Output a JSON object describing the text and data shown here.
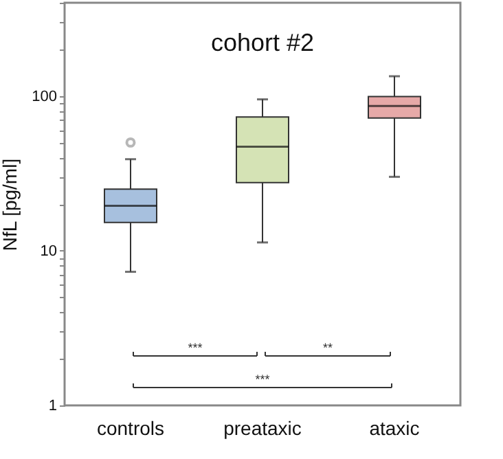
{
  "chart_data": {
    "type": "box",
    "title": "cohort #2",
    "ylabel": "NfL [pg/ml]",
    "categories": [
      "controls",
      "preataxic",
      "ataxic"
    ],
    "colors": [
      "#a7c0de",
      "#d5e3b5",
      "#e6a9a8"
    ],
    "boxes": [
      {
        "low": 7.3,
        "q1": 15.2,
        "median": 19.5,
        "q3": 25,
        "high": 39,
        "outliers": [
          50
        ]
      },
      {
        "low": 11.3,
        "q1": 27.5,
        "median": 47,
        "q3": 73,
        "high": 95
      },
      {
        "low": 30,
        "q1": 72,
        "median": 86,
        "q3": 99,
        "high": 134
      }
    ],
    "log": true,
    "ylim": [
      1,
      400
    ],
    "yticks": [
      1,
      {
        "value": 2,
        "label": null
      },
      {
        "value": 3,
        "label": null
      },
      {
        "value": 4,
        "label": null
      },
      {
        "value": 5,
        "label": null
      },
      {
        "value": 6,
        "label": null
      },
      {
        "value": 7,
        "label": null
      },
      {
        "value": 8,
        "label": null
      },
      {
        "value": 9,
        "label": null
      },
      10,
      {
        "value": 20,
        "label": null
      },
      {
        "value": 30,
        "label": null
      },
      {
        "value": 40,
        "label": null
      },
      {
        "value": 50,
        "label": null
      },
      {
        "value": 60,
        "label": null
      },
      {
        "value": 70,
        "label": null
      },
      {
        "value": 80,
        "label": null
      },
      {
        "value": 90,
        "label": null
      },
      100,
      {
        "value": 200,
        "label": null
      },
      {
        "value": 300,
        "label": null
      },
      {
        "value": 400,
        "label": null
      }
    ],
    "grid": false,
    "annotations": [
      "***",
      "**",
      "***"
    ]
  }
}
